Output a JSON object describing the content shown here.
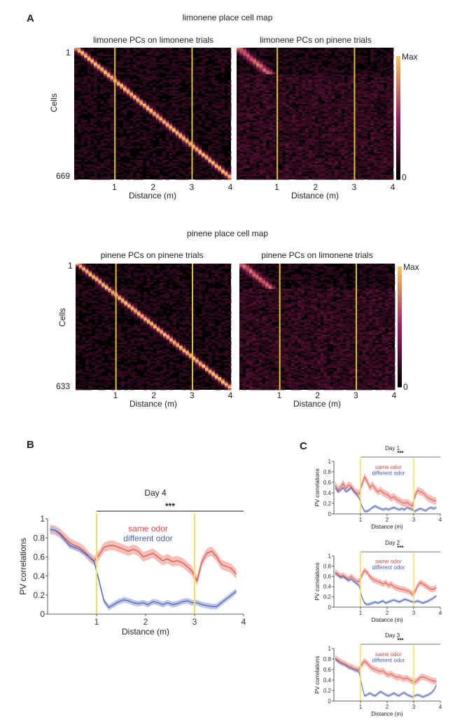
{
  "panel_a": {
    "letter": "A",
    "maps": [
      {
        "title": "limonene place cell map",
        "n_cells": 669,
        "heatmaps": [
          {
            "title": "limonene PCs on limonene trials",
            "ylabel": "Cells",
            "y_top": "1",
            "y_bottom": "669",
            "xlabel": "Distance (m)",
            "x_ticks": [
              "1",
              "2",
              "3",
              "4"
            ]
          },
          {
            "title": "limonene PCs on pinene trials",
            "xlabel": "Distance (m)",
            "x_ticks": [
              "1",
              "2",
              "3",
              "4"
            ]
          }
        ],
        "colorbar": {
          "max_label": "Max",
          "min_label": "0"
        }
      },
      {
        "title": "pinene place cell map",
        "n_cells": 633,
        "heatmaps": [
          {
            "title": "pinene PCs on pinene trials",
            "ylabel": "Cells",
            "y_top": "1",
            "y_bottom": "633",
            "xlabel": "Distance (m)",
            "x_ticks": [
              "1",
              "2",
              "3",
              "4"
            ]
          },
          {
            "title": "pinene PCs on limonene trials",
            "xlabel": "Distance (m)",
            "x_ticks": [
              "1",
              "2",
              "3",
              "4"
            ]
          }
        ],
        "colorbar": {
          "max_label": "Max",
          "min_label": "0"
        }
      }
    ],
    "colors": {
      "heat_low": "#000000",
      "heat_mid": "#9a1f5e",
      "heat_high": "#f3c65f",
      "marker_line": "#d8c436"
    }
  },
  "panel_b": {
    "letter": "B"
  },
  "panel_c": {
    "letter": "C"
  },
  "chart_data": [
    {
      "type": "line",
      "title": "Day 4",
      "xlabel": "Distance (m)",
      "ylabel": "PV correlations",
      "xlim": [
        0,
        4
      ],
      "ylim": [
        0,
        1
      ],
      "x_ticks": [
        1,
        2,
        3,
        4
      ],
      "y_ticks": [
        0,
        0.2,
        0.4,
        0.6,
        0.8,
        1
      ],
      "significance": "***",
      "significance_range": [
        1,
        4
      ],
      "markers_x": [
        1,
        3
      ],
      "x": [
        0.05,
        0.15,
        0.25,
        0.35,
        0.45,
        0.55,
        0.65,
        0.75,
        0.85,
        0.95,
        1.05,
        1.15,
        1.25,
        1.35,
        1.45,
        1.55,
        1.65,
        1.75,
        1.85,
        1.95,
        2.05,
        2.15,
        2.25,
        2.35,
        2.45,
        2.55,
        2.65,
        2.75,
        2.85,
        2.95,
        3.05,
        3.15,
        3.25,
        3.35,
        3.45,
        3.55,
        3.65,
        3.75,
        3.85
      ],
      "series": [
        {
          "name": "same odor",
          "color": "#e04848",
          "band": "#f2aaa0",
          "values": [
            0.89,
            0.88,
            0.85,
            0.8,
            0.75,
            0.72,
            0.7,
            0.66,
            0.6,
            0.56,
            0.62,
            0.7,
            0.72,
            0.72,
            0.7,
            0.68,
            0.66,
            0.68,
            0.66,
            0.6,
            0.62,
            0.64,
            0.6,
            0.56,
            0.58,
            0.55,
            0.56,
            0.54,
            0.5,
            0.45,
            0.35,
            0.55,
            0.64,
            0.66,
            0.6,
            0.52,
            0.5,
            0.48,
            0.42
          ],
          "err": 0.05
        },
        {
          "name": "different odor",
          "color": "#4a5fb0",
          "band": "#a8b1df",
          "values": [
            0.89,
            0.88,
            0.84,
            0.78,
            0.72,
            0.7,
            0.68,
            0.64,
            0.6,
            0.55,
            0.35,
            0.14,
            0.07,
            0.1,
            0.13,
            0.15,
            0.14,
            0.12,
            0.11,
            0.12,
            0.1,
            0.13,
            0.12,
            0.1,
            0.12,
            0.1,
            0.11,
            0.13,
            0.14,
            0.12,
            0.12,
            0.1,
            0.09,
            0.08,
            0.08,
            0.12,
            0.16,
            0.2,
            0.24
          ],
          "err": 0.03
        }
      ]
    },
    {
      "type": "line",
      "title": "Day 1",
      "xlabel": "Distance (m)",
      "ylabel": "PV correlations",
      "xlim": [
        0,
        4
      ],
      "ylim": [
        0,
        1
      ],
      "x_ticks": [
        1,
        2,
        3,
        4
      ],
      "y_ticks": [
        0,
        0.2,
        0.4,
        0.6,
        0.8,
        1
      ],
      "significance": "***",
      "significance_range": [
        1,
        4
      ],
      "markers_x": [
        1,
        3
      ],
      "x": [
        0.05,
        0.15,
        0.25,
        0.35,
        0.45,
        0.55,
        0.65,
        0.75,
        0.85,
        0.95,
        1.05,
        1.15,
        1.25,
        1.35,
        1.45,
        1.55,
        1.65,
        1.75,
        1.85,
        1.95,
        2.05,
        2.15,
        2.25,
        2.35,
        2.45,
        2.55,
        2.65,
        2.75,
        2.85,
        2.95,
        3.05,
        3.15,
        3.25,
        3.35,
        3.45,
        3.55,
        3.65,
        3.75,
        3.85
      ],
      "series": [
        {
          "name": "same odor",
          "color": "#e04848",
          "band": "#f2aaa0",
          "values": [
            0.55,
            0.45,
            0.5,
            0.58,
            0.48,
            0.55,
            0.52,
            0.45,
            0.4,
            0.38,
            0.55,
            0.7,
            0.62,
            0.5,
            0.55,
            0.48,
            0.42,
            0.45,
            0.4,
            0.38,
            0.35,
            0.3,
            0.33,
            0.28,
            0.25,
            0.22,
            0.2,
            0.22,
            0.18,
            0.15,
            0.35,
            0.45,
            0.42,
            0.4,
            0.35,
            0.3,
            0.28,
            0.25,
            0.25
          ],
          "err": 0.07
        },
        {
          "name": "different odor",
          "color": "#4a5fb0",
          "band": "#a8b1df",
          "values": [
            0.5,
            0.42,
            0.45,
            0.5,
            0.42,
            0.45,
            0.5,
            0.42,
            0.38,
            0.3,
            0.15,
            0.05,
            0.05,
            0.08,
            0.12,
            0.15,
            0.12,
            0.1,
            0.08,
            0.1,
            0.08,
            0.1,
            0.12,
            0.1,
            0.08,
            0.1,
            0.08,
            0.12,
            0.1,
            0.08,
            0.05,
            0.08,
            0.1,
            0.08,
            0.06,
            0.1,
            0.12,
            0.1,
            0.12
          ],
          "err": 0.03
        }
      ]
    },
    {
      "type": "line",
      "title": "Day 2",
      "xlabel": "Distance (m)",
      "ylabel": "PV correlations",
      "xlim": [
        0,
        4
      ],
      "ylim": [
        0,
        1
      ],
      "x_ticks": [
        1,
        2,
        3,
        4
      ],
      "y_ticks": [
        0,
        0.2,
        0.4,
        0.6,
        0.8,
        1
      ],
      "significance": "***",
      "significance_range": [
        1,
        4
      ],
      "markers_x": [
        1,
        3
      ],
      "x": [
        0.05,
        0.15,
        0.25,
        0.35,
        0.45,
        0.55,
        0.65,
        0.75,
        0.85,
        0.95,
        1.05,
        1.15,
        1.25,
        1.35,
        1.45,
        1.55,
        1.65,
        1.75,
        1.85,
        1.95,
        2.05,
        2.15,
        2.25,
        2.35,
        2.45,
        2.55,
        2.65,
        2.75,
        2.85,
        2.95,
        3.05,
        3.15,
        3.25,
        3.35,
        3.45,
        3.55,
        3.65,
        3.75,
        3.85
      ],
      "series": [
        {
          "name": "same odor",
          "color": "#e04848",
          "band": "#f2aaa0",
          "values": [
            0.68,
            0.65,
            0.6,
            0.62,
            0.58,
            0.55,
            0.6,
            0.55,
            0.5,
            0.5,
            0.62,
            0.72,
            0.68,
            0.6,
            0.55,
            0.52,
            0.5,
            0.48,
            0.45,
            0.48,
            0.42,
            0.45,
            0.4,
            0.38,
            0.36,
            0.35,
            0.34,
            0.32,
            0.3,
            0.25,
            0.3,
            0.42,
            0.48,
            0.45,
            0.42,
            0.38,
            0.35,
            0.35,
            0.38
          ],
          "err": 0.06
        },
        {
          "name": "different odor",
          "color": "#4a5fb0",
          "band": "#a8b1df",
          "values": [
            0.66,
            0.62,
            0.58,
            0.6,
            0.56,
            0.52,
            0.55,
            0.5,
            0.46,
            0.42,
            0.2,
            0.08,
            0.05,
            0.06,
            0.08,
            0.1,
            0.08,
            0.1,
            0.12,
            0.08,
            0.1,
            0.12,
            0.14,
            0.12,
            0.1,
            0.12,
            0.15,
            0.14,
            0.12,
            0.1,
            0.1,
            0.12,
            0.1,
            0.08,
            0.1,
            0.12,
            0.15,
            0.18,
            0.22
          ],
          "err": 0.03
        }
      ]
    },
    {
      "type": "line",
      "title": "Day 3",
      "xlabel": "Distance (m)",
      "ylabel": "PV correlations",
      "xlim": [
        0,
        4
      ],
      "ylim": [
        0,
        1
      ],
      "x_ticks": [
        1,
        2,
        3,
        4
      ],
      "y_ticks": [
        0,
        0.2,
        0.4,
        0.6,
        0.8,
        1
      ],
      "significance": "***",
      "significance_range": [
        1,
        4
      ],
      "markers_x": [
        1,
        3
      ],
      "x": [
        0.05,
        0.15,
        0.25,
        0.35,
        0.45,
        0.55,
        0.65,
        0.75,
        0.85,
        0.95,
        1.05,
        1.15,
        1.25,
        1.35,
        1.45,
        1.55,
        1.65,
        1.75,
        1.85,
        1.95,
        2.05,
        2.15,
        2.25,
        2.35,
        2.45,
        2.55,
        2.65,
        2.75,
        2.85,
        2.95,
        3.05,
        3.15,
        3.25,
        3.35,
        3.45,
        3.55,
        3.65,
        3.75,
        3.85
      ],
      "series": [
        {
          "name": "same odor",
          "color": "#e04848",
          "band": "#f2aaa0",
          "values": [
            0.82,
            0.78,
            0.75,
            0.72,
            0.7,
            0.66,
            0.65,
            0.62,
            0.6,
            0.6,
            0.7,
            0.76,
            0.72,
            0.66,
            0.62,
            0.6,
            0.58,
            0.56,
            0.58,
            0.52,
            0.5,
            0.52,
            0.48,
            0.45,
            0.46,
            0.44,
            0.42,
            0.44,
            0.4,
            0.38,
            0.36,
            0.4,
            0.45,
            0.46,
            0.44,
            0.42,
            0.4,
            0.38,
            0.38
          ],
          "err": 0.06
        },
        {
          "name": "different odor",
          "color": "#4a5fb0",
          "band": "#a8b1df",
          "values": [
            0.8,
            0.76,
            0.72,
            0.7,
            0.68,
            0.64,
            0.62,
            0.6,
            0.58,
            0.55,
            0.3,
            0.1,
            0.12,
            0.15,
            0.12,
            0.1,
            0.14,
            0.18,
            0.15,
            0.12,
            0.1,
            0.12,
            0.15,
            0.12,
            0.1,
            0.14,
            0.16,
            0.12,
            0.1,
            0.08,
            0.1,
            0.12,
            0.1,
            0.08,
            0.1,
            0.12,
            0.15,
            0.2,
            0.3
          ],
          "err": 0.03
        }
      ]
    }
  ]
}
